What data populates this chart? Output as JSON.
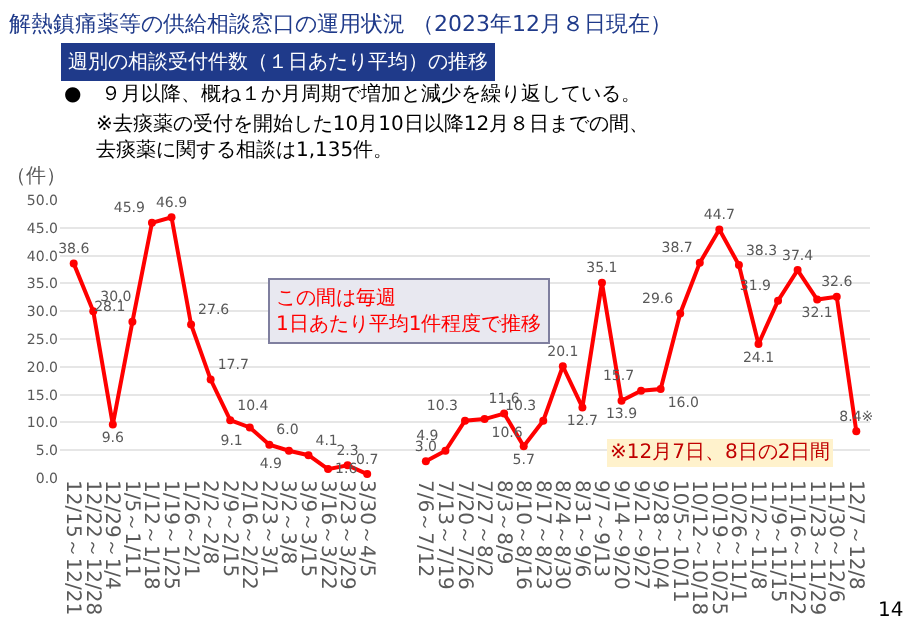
{
  "chart_data": {
    "type": "line",
    "title": "解熱鎮痛薬等の供給相談窓口の運用状況 （2023年12月８日現在）",
    "subtitle": "週別の相談受付件数（１日あたり平均）の推移",
    "ylabel": "（件）",
    "categories": [
      "12/15～12/21",
      "12/22～12/28",
      "12/29～1/4",
      "1/5～1/11",
      "1/12～1/18",
      "1/19～1/25",
      "1/26～2/1",
      "2/2～2/8",
      "2/9～2/15",
      "2/16～2/22",
      "2/23～3/1",
      "3/2～3/8",
      "3/9～3/15",
      "3/16～3/22",
      "3/23～3/29",
      "3/30～4/5",
      null,
      null,
      "7/6～7/12",
      "7/13～7/19",
      "7/20～7/26",
      "7/27～8/2",
      "8/3～8/9",
      "8/10～8/16",
      "8/17～8/23",
      "8/24～8/30",
      "8/31～9/6",
      "9/7～9/13",
      "9/14～9/20",
      "9/21～9/27",
      "9/28～10/4",
      "10/5～10/11",
      "10/12～10/18",
      "10/19～10/25",
      "10/26～11/1",
      "11/2～11/8",
      "11/9～11/15",
      "11/16～11/22",
      "11/23～11/29",
      "11/30～12/6",
      "12/7～12/8"
    ],
    "series": [
      {
        "color": "#ff0000",
        "values": [
          38.6,
          30.0,
          9.6,
          28.1,
          45.9,
          46.9,
          27.6,
          17.7,
          10.4,
          9.1,
          6.0,
          4.9,
          4.1,
          1.6,
          2.3,
          0.7,
          null,
          null,
          3.0,
          4.9,
          10.3,
          10.6,
          11.6,
          5.7,
          10.3,
          20.1,
          12.7,
          35.1,
          13.9,
          15.7,
          16.0,
          29.6,
          38.7,
          44.7,
          38.3,
          24.1,
          31.9,
          37.4,
          32.1,
          32.6,
          8.4
        ],
        "value_labels": [
          "38.6",
          "30.0",
          "9.6",
          "28.1",
          "45.9",
          "46.9",
          "27.6",
          "17.7",
          "10.4",
          "9.1",
          "6.0",
          "4.9",
          "4.1",
          "1.6",
          "2.3",
          "0.7",
          null,
          null,
          "3.0",
          "4.9",
          "10.3",
          "10.6",
          "11.6",
          "5.7",
          "10.3",
          "20.1",
          "12.7",
          "35.1",
          "13.9",
          "15.7",
          "16.0",
          "29.6",
          "38.7",
          "44.7",
          "38.3",
          "24.1",
          "31.9",
          "37.4",
          "32.1",
          "32.6",
          "8.4※"
        ]
      }
    ],
    "ylim": [
      0,
      50
    ],
    "yticks": [
      {
        "value": 0,
        "label": "0.0"
      },
      {
        "value": 5,
        "label": "5.0"
      },
      {
        "value": 10,
        "label": "10.0"
      },
      {
        "value": 15,
        "label": "15.0"
      },
      {
        "value": 20,
        "label": "20.0"
      },
      {
        "value": 25,
        "label": "25.0"
      },
      {
        "value": 30,
        "label": "30.0"
      },
      {
        "value": 35,
        "label": "35.0"
      },
      {
        "value": 40,
        "label": "40.0"
      },
      {
        "value": 45,
        "label": "45.0"
      },
      {
        "value": 50,
        "label": "50.0"
      }
    ],
    "grid": "y",
    "legend": false,
    "marker": "circle",
    "line_style": "solid",
    "annotations": [
      "●　９月以降、概ね１か月周期で増加と減少を繰り返している。",
      "※去痰薬の受付を開始した10月10日以降12月８日までの間、去痰薬に関する相談は1,135件。",
      "この間は毎週\n1日あたり平均1件程度で推移",
      "※12月7日、8日の2日間",
      "14"
    ]
  }
}
